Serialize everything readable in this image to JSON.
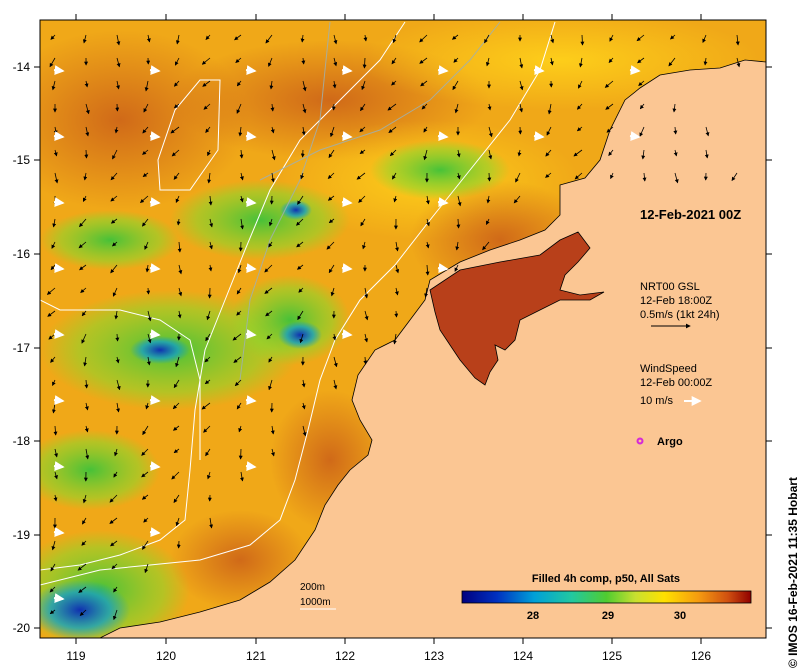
{
  "map": {
    "lon_ticks": [
      "119",
      "120",
      "121",
      "122",
      "123",
      "124",
      "125",
      "126"
    ],
    "lat_ticks": [
      "-14",
      "-15",
      "-16",
      "-17",
      "-18",
      "-19",
      "-20"
    ],
    "date_label": "12-Feb-2021 00Z",
    "current_legend": {
      "line1": "NRT00 GSL",
      "line2": "12-Feb 18:00Z",
      "line3": "0.5m/s (1kt 24h)"
    },
    "wind_legend": {
      "line1": "WindSpeed",
      "line2": "12-Feb 00:00Z",
      "line3": "10 m/s"
    },
    "argo_label": "Argo",
    "isobaths": [
      "200m",
      "1000m"
    ],
    "colorbar": {
      "title": "Filled 4h comp, p50, All Sats",
      "ticks": [
        "28",
        "29",
        "30"
      ]
    },
    "credit": "© IMOS 16-Feb-2021 11:35 Hobart"
  },
  "colors": {
    "land": "#fbc693",
    "sst_warm": "#d9661a",
    "sst_mid": "#f0a818",
    "sst_cool": "#4cc23a",
    "argo": "#d62bd6",
    "isobath": "#ffffff"
  }
}
